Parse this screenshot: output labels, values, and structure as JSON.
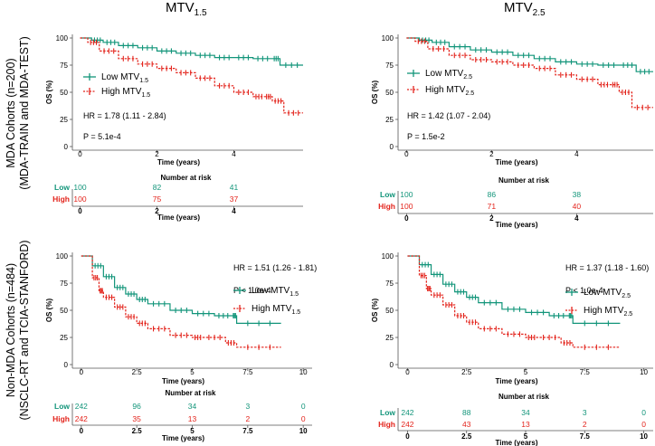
{
  "columns": [
    {
      "title_main": "MTV",
      "title_sub": "1.5"
    },
    {
      "title_main": "MTV",
      "title_sub": "2.5"
    }
  ],
  "rows": [
    {
      "label_line1": "MDA Cohorts  (n=200)",
      "label_line2": "(MDA-TRAIN and MDA-TEST)"
    },
    {
      "label_line1": "Non-MDA Cohorts (n=484)",
      "label_line2": "(NSCLC-RT and TCIA-STANFORD)"
    }
  ],
  "colors": {
    "low": "#12957a",
    "high": "#e3241c",
    "axis": "#555555"
  },
  "chart_data": [
    {
      "type": "line",
      "subtype": "kaplan-meier",
      "ylabel": "OS (%)",
      "xlabel": "Time (years)",
      "xlim": [
        -0.2,
        5.8
      ],
      "ylim": [
        0,
        100
      ],
      "xticks": [
        "0",
        "2",
        "4"
      ],
      "yticks": [
        "0",
        "25",
        "50",
        "75",
        "100"
      ],
      "hr_text": "HR = 1.78 (1.11 - 2.84)",
      "p_text": "P    = 5.1e-4",
      "legend": [
        {
          "name": "Low MTV",
          "sub": "1.5"
        },
        {
          "name": "High MTV",
          "sub": "1.5"
        }
      ],
      "series": [
        {
          "name": "Low MTV1.5",
          "x": [
            0,
            0.3,
            0.6,
            1.0,
            1.5,
            2.0,
            2.5,
            3.0,
            3.5,
            4.0,
            4.5,
            5.0,
            5.2,
            5.8
          ],
          "y": [
            100,
            98,
            96,
            93,
            91,
            88,
            86,
            84,
            82,
            82,
            81,
            81,
            75,
            75
          ]
        },
        {
          "name": "High MTV1.5",
          "x": [
            0,
            0.2,
            0.5,
            1.0,
            1.5,
            2.0,
            2.5,
            3.0,
            3.5,
            4.0,
            4.5,
            4.8,
            5.0,
            5.3,
            5.8
          ],
          "y": [
            100,
            96,
            88,
            81,
            76,
            72,
            68,
            63,
            56,
            50,
            46,
            46,
            42,
            31,
            31
          ]
        }
      ],
      "risk_table": {
        "title": "Number at risk",
        "xticks": [
          "0",
          "2",
          "4"
        ],
        "low_label": "Low",
        "high_label": "High",
        "times": [
          0,
          2,
          4
        ],
        "low": [
          "100",
          "82",
          "41"
        ],
        "high": [
          "100",
          "75",
          "37"
        ]
      }
    },
    {
      "type": "line",
      "subtype": "kaplan-meier",
      "ylabel": "OS (%)",
      "xlabel": "Time (years)",
      "xlim": [
        -0.2,
        5.8
      ],
      "ylim": [
        0,
        100
      ],
      "xticks": [
        "0",
        "2",
        "4"
      ],
      "yticks": [
        "0",
        "25",
        "50",
        "75",
        "100"
      ],
      "hr_text": "HR = 1.42 (1.07 - 2.04)",
      "p_text": "P    = 1.5e-2",
      "legend": [
        {
          "name": "Low MTV",
          "sub": "2.5"
        },
        {
          "name": "High MTV",
          "sub": "2.5"
        }
      ],
      "series": [
        {
          "name": "Low MTV2.5",
          "x": [
            0,
            0.3,
            0.6,
            1.0,
            1.5,
            2.0,
            2.5,
            3.0,
            3.5,
            4.0,
            4.5,
            5.0,
            5.4,
            5.8
          ],
          "y": [
            100,
            98,
            96,
            92,
            89,
            87,
            84,
            81,
            78,
            76,
            75,
            75,
            69,
            69
          ]
        },
        {
          "name": "High MTV2.5",
          "x": [
            0,
            0.2,
            0.5,
            1.0,
            1.5,
            2.0,
            2.5,
            3.0,
            3.5,
            4.0,
            4.5,
            4.8,
            5.0,
            5.3,
            5.8
          ],
          "y": [
            100,
            97,
            90,
            84,
            80,
            78,
            75,
            72,
            66,
            62,
            57,
            57,
            50,
            36,
            36
          ]
        }
      ],
      "risk_table": {
        "title": "Number at risk",
        "xticks": [
          "0",
          "2",
          "4"
        ],
        "low_label": "Low",
        "high_label": "High",
        "times": [
          0,
          2,
          4
        ],
        "low": [
          "100",
          "86",
          "38"
        ],
        "high": [
          "100",
          "71",
          "40"
        ]
      }
    },
    {
      "type": "line",
      "subtype": "kaplan-meier",
      "ylabel": "OS (%)",
      "xlabel": "Time (years)",
      "xlim": [
        -0.4,
        10.4
      ],
      "ylim": [
        0,
        100
      ],
      "xticks": [
        "0",
        "2.5",
        "5",
        "7.5",
        "10"
      ],
      "yticks": [
        "0",
        "25",
        "50",
        "75",
        "100"
      ],
      "hr_text": "HR = 1.51 (1.26 - 1.81)",
      "p_text": "P   < 1.0e-4",
      "legend": [
        {
          "name": "Low MTV",
          "sub": "1.5"
        },
        {
          "name": "High MTV",
          "sub": "1.5"
        }
      ],
      "series": [
        {
          "name": "Low MTV1.5",
          "x": [
            0,
            0.5,
            1.0,
            1.5,
            2.0,
            2.5,
            3.0,
            4.0,
            5.0,
            6.0,
            6.8,
            7.0,
            9.0
          ],
          "y": [
            100,
            91,
            81,
            71,
            65,
            60,
            56,
            50,
            47,
            45,
            45,
            38,
            38
          ]
        },
        {
          "name": "High MTV1.5",
          "x": [
            0,
            0.5,
            0.8,
            1.0,
            1.5,
            2.0,
            2.5,
            3.0,
            4.0,
            5.0,
            5.5,
            6.5,
            7.0,
            9.0
          ],
          "y": [
            100,
            80,
            68,
            62,
            53,
            44,
            38,
            33,
            27,
            25,
            25,
            20,
            16,
            16
          ]
        }
      ],
      "risk_table": {
        "title": "Number at risk",
        "xticks": [
          "0",
          "2.5",
          "5",
          "7.5",
          "10"
        ],
        "low_label": "Low",
        "high_label": "High",
        "times": [
          0,
          2.5,
          5,
          7.5,
          10
        ],
        "low": [
          "242",
          "96",
          "34",
          "3",
          "0"
        ],
        "high": [
          "242",
          "35",
          "13",
          "2",
          "0"
        ]
      }
    },
    {
      "type": "line",
      "subtype": "kaplan-meier",
      "ylabel": "OS (%)",
      "xlabel": "Time (years)",
      "xlim": [
        -0.4,
        10.4
      ],
      "ylim": [
        0,
        100
      ],
      "xticks": [
        "0",
        "2.5",
        "5",
        "7.5",
        "10"
      ],
      "yticks": [
        "0",
        "25",
        "50",
        "75",
        "100"
      ],
      "hr_text": "HR = 1.37 (1.18 - 1.60)",
      "p_text": "P   < 1.0e-4",
      "legend": [
        {
          "name": "Low MTV",
          "sub": "2.5"
        },
        {
          "name": "High MTV",
          "sub": "2.5"
        }
      ],
      "series": [
        {
          "name": "Low MTV2.5",
          "x": [
            0,
            0.5,
            1.0,
            1.5,
            2.0,
            2.5,
            3.0,
            4.0,
            5.0,
            6.0,
            6.8,
            7.0,
            9.0
          ],
          "y": [
            100,
            92,
            83,
            74,
            67,
            62,
            57,
            51,
            48,
            45,
            45,
            38,
            38
          ]
        },
        {
          "name": "High MTV2.5",
          "x": [
            0,
            0.5,
            0.8,
            1.0,
            1.5,
            2.0,
            2.5,
            3.0,
            4.0,
            5.0,
            5.5,
            6.5,
            7.0,
            9.0
          ],
          "y": [
            100,
            82,
            70,
            64,
            55,
            45,
            39,
            33,
            28,
            25,
            25,
            20,
            16,
            16
          ]
        }
      ],
      "risk_table": {
        "title": "Number at risk",
        "xticks": [
          "0",
          "2.5",
          "5",
          "7.5",
          "10"
        ],
        "low_label": "Low",
        "high_label": "High",
        "times": [
          0,
          2.5,
          5,
          7.5,
          10
        ],
        "low": [
          "242",
          "88",
          "34",
          "3",
          "0"
        ],
        "high": [
          "242",
          "43",
          "13",
          "2",
          "0"
        ]
      }
    }
  ]
}
